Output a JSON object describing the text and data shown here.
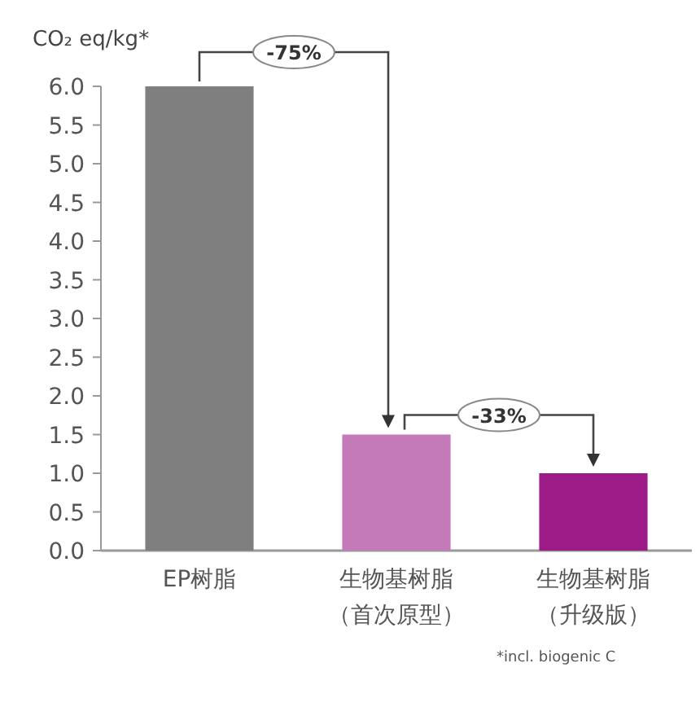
{
  "chart_data": {
    "type": "bar",
    "ylabel": "CO₂ eq/kg*",
    "categories": [
      "EP树脂",
      "生物基树脂（首次原型）",
      "生物基树脂（升级版）"
    ],
    "values": [
      6.0,
      1.5,
      1.0
    ],
    "colors": [
      "#7f7f7f",
      "#c479b9",
      "#9c1b87"
    ],
    "ylim": [
      0,
      6
    ],
    "yticks": [
      {
        "value": 0,
        "label": "0.0"
      },
      {
        "value": 0.5,
        "label": "0.5"
      },
      {
        "value": 1,
        "label": "1.0"
      },
      {
        "value": 1.5,
        "label": "1.5"
      },
      {
        "value": 2,
        "label": "2.0"
      },
      {
        "value": 2.5,
        "label": "2.5"
      },
      {
        "value": 3,
        "label": "3.0"
      },
      {
        "value": 3.5,
        "label": "3.5"
      },
      {
        "value": 4,
        "label": "4.0"
      },
      {
        "value": 4.5,
        "label": "4.5"
      },
      {
        "value": 5,
        "label": "5.0"
      },
      {
        "value": 5.5,
        "label": "5.5"
      },
      {
        "value": 6,
        "label": "6.0"
      }
    ],
    "annotations": [
      "-75%",
      "-33%",
      "*incl. biogenic C"
    ]
  }
}
